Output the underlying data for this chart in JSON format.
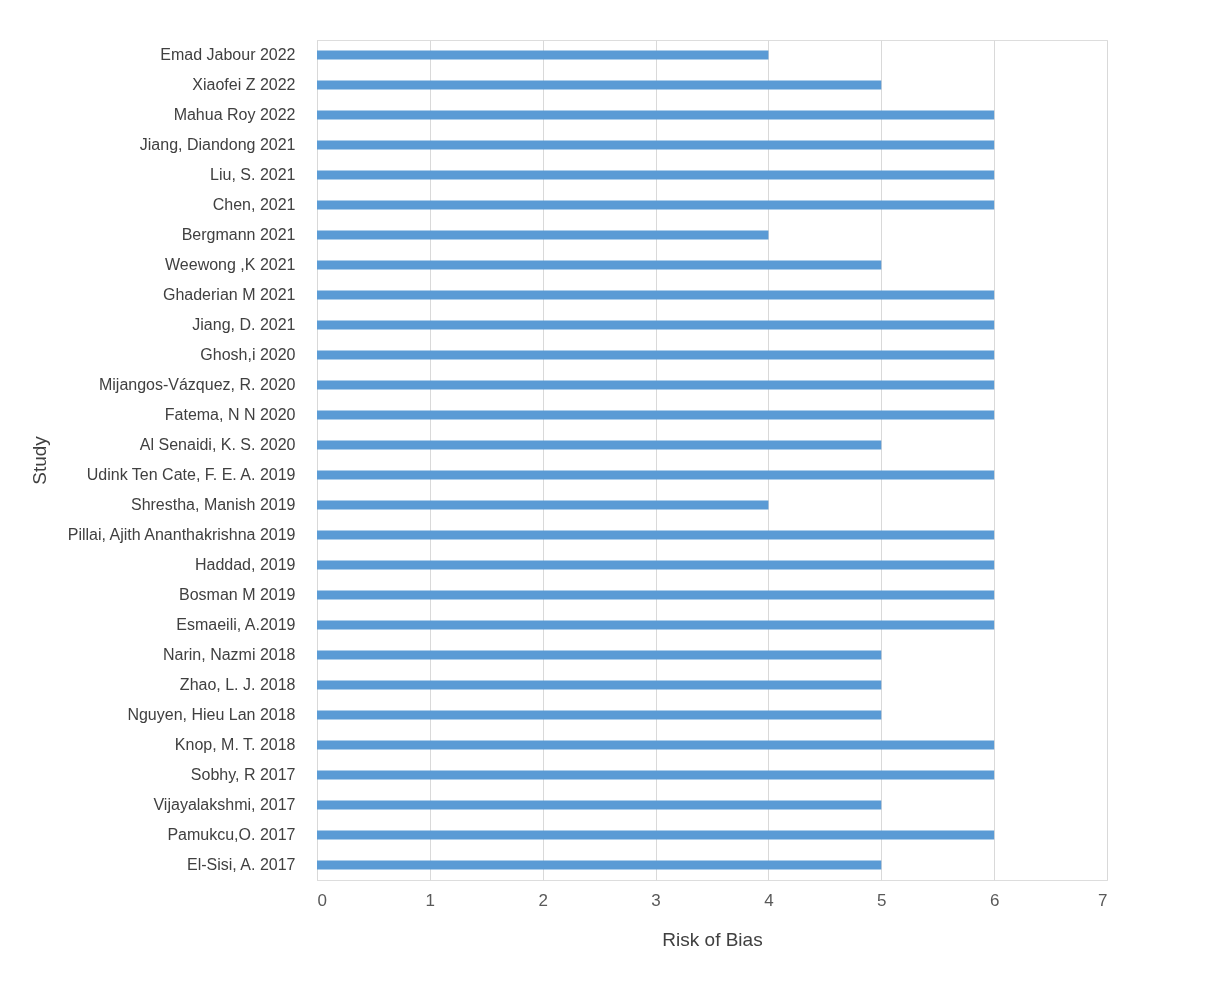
{
  "chart_data": {
    "type": "bar",
    "orientation": "horizontal",
    "xlabel": "Risk of Bias",
    "ylabel": "Study",
    "categories": [
      "Emad Jabour 2022",
      "Xiaofei Z 2022",
      "Mahua Roy 2022",
      "Jiang, Diandong 2021",
      "Liu, S. 2021",
      "Chen, 2021",
      "Bergmann 2021",
      "Weewong ,K 2021",
      "Ghaderian M 2021",
      "Jiang, D. 2021",
      "Ghosh,i 2020",
      "Mijangos-Vázquez, R. 2020",
      "Fatema, N N 2020",
      "Al Senaidi, K. S. 2020",
      "Udink Ten Cate, F. E. A. 2019",
      "Shrestha, Manish 2019",
      "Pillai, Ajith Ananthakrishna 2019",
      "Haddad, 2019",
      "Bosman M 2019",
      "Esmaeili, A.2019",
      "Narin, Nazmi 2018",
      "Zhao, L. J. 2018",
      "Nguyen, Hieu Lan 2018",
      "Knop, M. T. 2018",
      "Sobhy, R 2017",
      "Vijayalakshmi,  2017",
      "Pamukcu,O. 2017",
      "El-Sisi, A. 2017"
    ],
    "values": [
      4,
      5,
      6,
      6,
      6,
      6,
      4,
      5,
      6,
      6,
      6,
      6,
      6,
      5,
      6,
      4,
      6,
      6,
      6,
      6,
      5,
      5,
      5,
      6,
      6,
      5,
      6,
      5
    ],
    "color": "#5b9bd5",
    "xlim": [
      0,
      7
    ],
    "xticks": [
      0,
      1,
      2,
      3,
      4,
      5,
      6,
      7
    ],
    "grid": "x"
  }
}
